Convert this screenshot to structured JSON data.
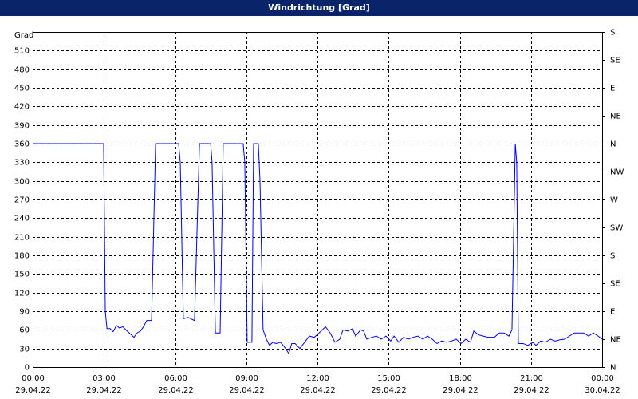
{
  "chart_data": {
    "type": "line",
    "title": "Windrichtung [Grad]",
    "y_label": "Grad",
    "color": "#0000ff",
    "grid": true,
    "xlim": [
      0,
      24
    ],
    "xticks": [
      {
        "value": 0,
        "label": "00:00",
        "date": "29.04.22"
      },
      {
        "value": 3,
        "label": "03:00",
        "date": "29.04.22"
      },
      {
        "value": 6,
        "label": "06:00",
        "date": "29.04.22"
      },
      {
        "value": 9,
        "label": "09:00",
        "date": "29.04.22"
      },
      {
        "value": 12,
        "label": "12:00",
        "date": "29.04.22"
      },
      {
        "value": 15,
        "label": "15:00",
        "date": "29.04.22"
      },
      {
        "value": 18,
        "label": "18:00",
        "date": "29.04.22"
      },
      {
        "value": 21,
        "label": "21:00",
        "date": "29.04.22"
      },
      {
        "value": 24,
        "label": "00:00",
        "date": "30.04.22"
      }
    ],
    "ylim": [
      0,
      540
    ],
    "yticks": [
      0,
      30,
      60,
      90,
      120,
      150,
      180,
      210,
      240,
      270,
      300,
      330,
      360,
      390,
      420,
      450,
      480,
      510
    ],
    "y2lim": [
      0,
      540
    ],
    "y2ticks": [
      {
        "value": 0,
        "label": "N"
      },
      {
        "value": 45,
        "label": "NE"
      },
      {
        "value": 90,
        "label": "E"
      },
      {
        "value": 135,
        "label": "SE"
      },
      {
        "value": 180,
        "label": "S"
      },
      {
        "value": 225,
        "label": "SW"
      },
      {
        "value": 270,
        "label": "W"
      },
      {
        "value": 315,
        "label": "NW"
      },
      {
        "value": 360,
        "label": "N"
      },
      {
        "value": 405,
        "label": "NE"
      },
      {
        "value": 450,
        "label": "E"
      },
      {
        "value": 495,
        "label": "SE"
      },
      {
        "value": 540,
        "label": "S"
      }
    ],
    "x": [
      0,
      2.95,
      2.99,
      3.06,
      3.13,
      3.26,
      3.39,
      3.53,
      3.66,
      3.8,
      3.93,
      4.07,
      4.27,
      4.4,
      4.54,
      4.67,
      4.81,
      5.01,
      5.18,
      6.15,
      6.22,
      6.35,
      6.55,
      6.82,
      7.03,
      7.5,
      7.56,
      7.7,
      7.9,
      8.03,
      8.87,
      8.94,
      9.04,
      9.24,
      9.31,
      9.51,
      9.58,
      9.71,
      9.85,
      9.98,
      10.12,
      10.25,
      10.45,
      10.66,
      10.79,
      10.92,
      11.06,
      11.26,
      11.46,
      11.66,
      11.87,
      12.07,
      12.34,
      12.54,
      12.74,
      12.94,
      13.08,
      13.28,
      13.48,
      13.61,
      13.82,
      13.95,
      14.08,
      14.29,
      14.49,
      14.69,
      14.89,
      15.09,
      15.23,
      15.43,
      15.63,
      15.83,
      16.03,
      16.24,
      16.44,
      16.64,
      16.84,
      17.04,
      17.24,
      17.45,
      17.65,
      17.85,
      18.05,
      18.25,
      18.45,
      18.59,
      18.79,
      18.99,
      19.19,
      19.46,
      19.66,
      19.87,
      20.07,
      20.2,
      20.34,
      20.4,
      20.47,
      20.67,
      20.87,
      21.08,
      21.21,
      21.41,
      21.61,
      21.82,
      22.02,
      22.22,
      22.42,
      22.62,
      22.82,
      23.03,
      23.23,
      23.43,
      23.63,
      23.83,
      24
    ],
    "values": [
      360,
      360,
      360,
      90,
      62,
      62,
      57,
      67,
      63,
      65,
      60,
      55,
      48,
      55,
      58,
      65,
      75,
      75,
      360,
      360,
      330,
      78,
      80,
      75,
      360,
      360,
      330,
      55,
      55,
      360,
      360,
      330,
      40,
      40,
      360,
      360,
      300,
      60,
      45,
      35,
      40,
      38,
      40,
      30,
      22,
      38,
      38,
      30,
      40,
      50,
      48,
      55,
      65,
      55,
      40,
      45,
      60,
      58,
      62,
      50,
      60,
      58,
      45,
      48,
      50,
      45,
      50,
      42,
      50,
      40,
      48,
      45,
      48,
      50,
      45,
      50,
      45,
      38,
      42,
      40,
      42,
      45,
      38,
      45,
      40,
      58,
      52,
      50,
      48,
      48,
      55,
      55,
      50,
      60,
      360,
      330,
      38,
      38,
      35,
      40,
      35,
      42,
      40,
      45,
      42,
      44,
      45,
      50,
      55,
      55,
      55,
      50,
      55,
      50,
      45
    ]
  }
}
